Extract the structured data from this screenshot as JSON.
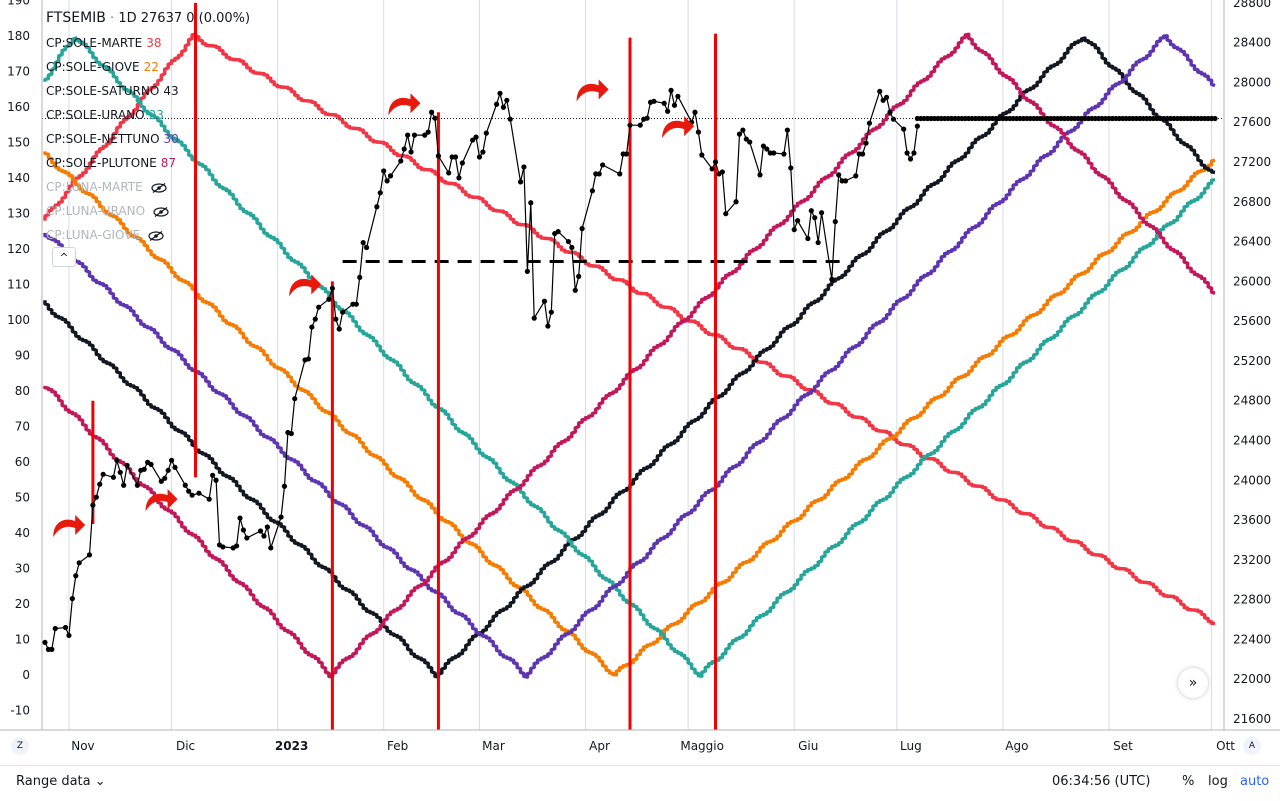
{
  "header": {
    "symbol": "FTSEMIB",
    "interval": "1D",
    "price": "27637",
    "change": "0 (0.00%)"
  },
  "indicators": [
    {
      "label": "CP:SOLE-MARTE",
      "value": "38",
      "color": "#f23645",
      "hidden": false
    },
    {
      "label": "CP:SOLE-GIOVE",
      "value": "22",
      "color": "#f57c00",
      "hidden": false
    },
    {
      "label": "CP:SOLE-SATURNO",
      "value": "43",
      "color": "#131722",
      "hidden": false
    },
    {
      "label": "CP:SOLE-URANO",
      "value": "23",
      "color": "#26a69a",
      "hidden": false
    },
    {
      "label": "CP:SOLE-NETTUNO",
      "value": "30",
      "color": "#5e35b1",
      "hidden": false
    },
    {
      "label": "CP:SOLE-PLUTONE",
      "value": "87",
      "color": "#c2185b",
      "hidden": false
    },
    {
      "label": "CP:LUNA-MARTE",
      "value": "",
      "color": "#b2b5be",
      "hidden": true
    },
    {
      "label": "CP:LUNA-URANO",
      "value": "",
      "color": "#b2b5be",
      "hidden": true
    },
    {
      "label": "CP:LUNA-GIOVE",
      "value": "",
      "color": "#b2b5be",
      "hidden": true
    }
  ],
  "icons": {
    "collapse": "chevron-up-icon",
    "scroll": "double-chevron-right-icon",
    "eye_off": "eye-crossed-icon"
  },
  "footer": {
    "range_label": "Range data",
    "range_caret": "⌄",
    "clock": "06:34:56 (UTC)",
    "percent": "%",
    "log": "log",
    "auto": "auto",
    "left_axis_button": "Z",
    "right_axis_button": "A",
    "scroll_glyph": "»",
    "collapse_glyph": "^"
  },
  "chart_data": {
    "type": "line",
    "left_axis": {
      "min": -15,
      "max": 190,
      "ticks": [
        -10,
        0,
        10,
        20,
        30,
        40,
        50,
        60,
        70,
        80,
        90,
        100,
        110,
        120,
        130,
        140,
        150,
        160,
        170,
        180,
        190
      ]
    },
    "right_axis": {
      "min": 21400,
      "max": 28800,
      "ticks": [
        21600,
        22000,
        22400,
        22800,
        23200,
        23600,
        24000,
        24400,
        24800,
        25200,
        25600,
        26000,
        26400,
        26800,
        27200,
        27600,
        28000,
        28400,
        28800
      ]
    },
    "x_domain": [
      "2022-10-25",
      "2023-10-02"
    ],
    "month_ticks": [
      {
        "date": "2022-11-01",
        "label": "Nov",
        "bold": false
      },
      {
        "date": "2022-12-01",
        "label": "Dic",
        "bold": false
      },
      {
        "date": "2023-01-01",
        "label": "2023",
        "bold": true
      },
      {
        "date": "2023-02-01",
        "label": "Feb",
        "bold": false
      },
      {
        "date": "2023-03-01",
        "label": "Mar",
        "bold": false
      },
      {
        "date": "2023-04-01",
        "label": "Apr",
        "bold": false
      },
      {
        "date": "2023-05-01",
        "label": "Maggio",
        "bold": false
      },
      {
        "date": "2023-06-01",
        "label": "Giu",
        "bold": false
      },
      {
        "date": "2023-07-01",
        "label": "Lug",
        "bold": false
      },
      {
        "date": "2023-08-01",
        "label": "Ago",
        "bold": false
      },
      {
        "date": "2023-09-01",
        "label": "Set",
        "bold": false
      },
      {
        "date": "2023-10-01",
        "label": "Ott",
        "bold": false
      }
    ],
    "cycle_series": [
      {
        "color": "#f23645",
        "points": [
          [
            "2022-10-25",
            128
          ],
          [
            "2022-12-08",
            180
          ],
          [
            "2023-10-02",
            15
          ]
        ]
      },
      {
        "color": "#f57c00",
        "points": [
          [
            "2022-10-25",
            147
          ],
          [
            "2023-04-10",
            0
          ],
          [
            "2023-10-02",
            145
          ]
        ]
      },
      {
        "color": "#131722",
        "points": [
          [
            "2022-10-25",
            105
          ],
          [
            "2023-02-17",
            0
          ],
          [
            "2023-08-25",
            180
          ],
          [
            "2023-10-02",
            141
          ]
        ]
      },
      {
        "color": "#26a69a",
        "points": [
          [
            "2022-10-25",
            167
          ],
          [
            "2022-11-03",
            180
          ],
          [
            "2023-05-05",
            0
          ],
          [
            "2023-10-02",
            139
          ]
        ]
      },
      {
        "color": "#5e35b1",
        "points": [
          [
            "2022-10-25",
            125
          ],
          [
            "2023-03-15",
            0
          ],
          [
            "2023-09-18",
            180
          ],
          [
            "2023-10-02",
            166
          ]
        ]
      },
      {
        "color": "#c2185b",
        "points": [
          [
            "2022-10-25",
            82
          ],
          [
            "2023-01-17",
            0
          ],
          [
            "2023-07-22",
            180
          ],
          [
            "2023-10-02",
            108
          ]
        ]
      }
    ],
    "price_series": {
      "color": "#000000",
      "axis": "right",
      "points": [
        [
          "2022-10-25",
          22370
        ],
        [
          "2022-10-26",
          22300
        ],
        [
          "2022-10-27",
          22300
        ],
        [
          "2022-10-28",
          22510
        ],
        [
          "2022-10-31",
          22520
        ],
        [
          "2022-11-01",
          22440
        ],
        [
          "2022-11-02",
          22810
        ],
        [
          "2022-11-03",
          23040
        ],
        [
          "2022-11-04",
          23170
        ],
        [
          "2022-11-07",
          23250
        ],
        [
          "2022-11-08",
          23750
        ],
        [
          "2022-11-09",
          23830
        ],
        [
          "2022-11-10",
          23960
        ],
        [
          "2022-11-11",
          24060
        ],
        [
          "2022-11-14",
          24030
        ],
        [
          "2022-11-15",
          24200
        ],
        [
          "2022-11-16",
          24080
        ],
        [
          "2022-11-17",
          23950
        ],
        [
          "2022-11-18",
          24150
        ],
        [
          "2022-11-21",
          23950
        ],
        [
          "2022-11-22",
          24100
        ],
        [
          "2022-11-23",
          24110
        ],
        [
          "2022-11-24",
          24180
        ],
        [
          "2022-11-25",
          24160
        ],
        [
          "2022-11-28",
          23990
        ],
        [
          "2022-11-29",
          24020
        ],
        [
          "2022-11-30",
          24100
        ],
        [
          "2022-12-01",
          24200
        ],
        [
          "2022-12-02",
          24130
        ],
        [
          "2022-12-05",
          23950
        ],
        [
          "2022-12-06",
          23890
        ],
        [
          "2022-12-07",
          23850
        ],
        [
          "2022-12-09",
          23870
        ],
        [
          "2022-12-12",
          23810
        ],
        [
          "2022-12-13",
          24050
        ],
        [
          "2022-12-14",
          24000
        ],
        [
          "2022-12-15",
          23350
        ],
        [
          "2022-12-16",
          23330
        ],
        [
          "2022-12-19",
          23320
        ],
        [
          "2022-12-20",
          23340
        ],
        [
          "2022-12-21",
          23620
        ],
        [
          "2022-12-22",
          23500
        ],
        [
          "2022-12-23",
          23420
        ],
        [
          "2022-12-27",
          23490
        ],
        [
          "2022-12-28",
          23440
        ],
        [
          "2022-12-29",
          23530
        ],
        [
          "2022-12-30",
          23320
        ],
        [
          "2023-01-02",
          23630
        ],
        [
          "2023-01-03",
          23940
        ],
        [
          "2023-01-04",
          24480
        ],
        [
          "2023-01-05",
          24470
        ],
        [
          "2023-01-06",
          24820
        ],
        [
          "2023-01-09",
          25210
        ],
        [
          "2023-01-10",
          25220
        ],
        [
          "2023-01-11",
          25540
        ],
        [
          "2023-01-12",
          25620
        ],
        [
          "2023-01-13",
          25740
        ],
        [
          "2023-01-16",
          25820
        ],
        [
          "2023-01-17",
          25930
        ],
        [
          "2023-01-18",
          25620
        ],
        [
          "2023-01-19",
          25520
        ],
        [
          "2023-01-20",
          25690
        ],
        [
          "2023-01-23",
          25770
        ],
        [
          "2023-01-24",
          25770
        ],
        [
          "2023-01-25",
          26040
        ],
        [
          "2023-01-26",
          26390
        ],
        [
          "2023-01-27",
          26340
        ],
        [
          "2023-01-30",
          26750
        ],
        [
          "2023-01-31",
          26890
        ],
        [
          "2023-02-01",
          27110
        ],
        [
          "2023-02-02",
          27010
        ],
        [
          "2023-02-03",
          27060
        ],
        [
          "2023-02-06",
          27210
        ],
        [
          "2023-02-07",
          27330
        ],
        [
          "2023-02-08",
          27470
        ],
        [
          "2023-02-09",
          27300
        ],
        [
          "2023-02-10",
          27470
        ],
        [
          "2023-02-13",
          27470
        ],
        [
          "2023-02-14",
          27500
        ],
        [
          "2023-02-15",
          27700
        ],
        [
          "2023-02-16",
          27640
        ],
        [
          "2023-02-17",
          27260
        ],
        [
          "2023-02-20",
          27090
        ],
        [
          "2023-02-21",
          27250
        ],
        [
          "2023-02-22",
          27250
        ],
        [
          "2023-02-23",
          27040
        ],
        [
          "2023-02-24",
          27190
        ],
        [
          "2023-02-27",
          27420
        ],
        [
          "2023-02-28",
          27450
        ],
        [
          "2023-03-01",
          27250
        ],
        [
          "2023-03-02",
          27300
        ],
        [
          "2023-03-03",
          27490
        ],
        [
          "2023-03-06",
          27780
        ],
        [
          "2023-03-07",
          27890
        ],
        [
          "2023-03-08",
          27750
        ],
        [
          "2023-03-09",
          27820
        ],
        [
          "2023-03-10",
          27630
        ],
        [
          "2023-03-13",
          27000
        ],
        [
          "2023-03-14",
          27150
        ],
        [
          "2023-03-15",
          26100
        ],
        [
          "2023-03-16",
          26790
        ],
        [
          "2023-03-17",
          25630
        ],
        [
          "2023-03-20",
          25800
        ],
        [
          "2023-03-21",
          25550
        ],
        [
          "2023-03-22",
          25690
        ],
        [
          "2023-03-23",
          26480
        ],
        [
          "2023-03-24",
          26500
        ],
        [
          "2023-03-27",
          26400
        ],
        [
          "2023-03-28",
          26340
        ],
        [
          "2023-03-29",
          25910
        ],
        [
          "2023-03-30",
          26050
        ],
        [
          "2023-03-31",
          26530
        ],
        [
          "2023-04-03",
          26910
        ],
        [
          "2023-04-04",
          27080
        ],
        [
          "2023-04-05",
          27080
        ],
        [
          "2023-04-06",
          27170
        ],
        [
          "2023-04-11",
          27080
        ],
        [
          "2023-04-12",
          27280
        ],
        [
          "2023-04-13",
          27280
        ],
        [
          "2023-04-14",
          27570
        ],
        [
          "2023-04-17",
          27570
        ],
        [
          "2023-04-18",
          27630
        ],
        [
          "2023-04-19",
          27640
        ],
        [
          "2023-04-20",
          27800
        ],
        [
          "2023-04-21",
          27810
        ],
        [
          "2023-04-24",
          27790
        ],
        [
          "2023-04-25",
          27710
        ],
        [
          "2023-04-26",
          27920
        ],
        [
          "2023-04-27",
          27770
        ],
        [
          "2023-04-28",
          27860
        ],
        [
          "2023-05-02",
          27600
        ],
        [
          "2023-05-03",
          27700
        ],
        [
          "2023-05-04",
          27500
        ],
        [
          "2023-05-05",
          27270
        ],
        [
          "2023-05-08",
          27130
        ],
        [
          "2023-05-09",
          27200
        ],
        [
          "2023-05-10",
          27080
        ],
        [
          "2023-05-11",
          27100
        ],
        [
          "2023-05-12",
          26680
        ],
        [
          "2023-05-15",
          26800
        ],
        [
          "2023-05-16",
          27480
        ],
        [
          "2023-05-17",
          27520
        ],
        [
          "2023-05-18",
          27430
        ],
        [
          "2023-05-19",
          27400
        ],
        [
          "2023-05-22",
          27070
        ],
        [
          "2023-05-23",
          27360
        ],
        [
          "2023-05-24",
          27330
        ],
        [
          "2023-05-25",
          27290
        ],
        [
          "2023-05-26",
          27290
        ],
        [
          "2023-05-29",
          27280
        ],
        [
          "2023-05-30",
          27520
        ],
        [
          "2023-05-31",
          27140
        ],
        [
          "2023-06-01",
          26520
        ],
        [
          "2023-06-02",
          26610
        ],
        [
          "2023-06-05",
          26430
        ],
        [
          "2023-06-06",
          26710
        ],
        [
          "2023-06-07",
          26640
        ],
        [
          "2023-06-08",
          26390
        ],
        [
          "2023-06-09",
          26690
        ],
        [
          "2023-06-12",
          26020
        ],
        [
          "2023-06-13",
          26600
        ],
        [
          "2023-06-14",
          27070
        ],
        [
          "2023-06-15",
          27010
        ],
        [
          "2023-06-16",
          27010
        ],
        [
          "2023-06-19",
          27060
        ],
        [
          "2023-06-20",
          27280
        ],
        [
          "2023-06-21",
          27280
        ],
        [
          "2023-06-22",
          27390
        ],
        [
          "2023-06-23",
          27590
        ],
        [
          "2023-06-26",
          27910
        ],
        [
          "2023-06-27",
          27820
        ],
        [
          "2023-06-28",
          27850
        ],
        [
          "2023-06-29",
          27700
        ],
        [
          "2023-06-30",
          27630
        ],
        [
          "2023-07-03",
          27530
        ],
        [
          "2023-07-04",
          27290
        ],
        [
          "2023-07-05",
          27230
        ],
        [
          "2023-07-06",
          27290
        ],
        [
          "2023-07-07",
          27560
        ]
      ]
    },
    "projection": {
      "value": 27637,
      "from": "2023-07-07",
      "to": "2023-10-02",
      "color": "#000000"
    },
    "price_reference_line": {
      "value": 27637
    },
    "support_level": {
      "value": 26200,
      "from": "2023-01-20",
      "to": "2023-06-15"
    },
    "vertical_red_lines": [
      {
        "date": "2022-11-08",
        "from": 23560,
        "to": 24800
      },
      {
        "date": "2022-12-08",
        "from": 24030,
        "to": 28800
      },
      {
        "date": "2023-01-17",
        "from": 21400,
        "to": 26000
      },
      {
        "date": "2023-02-17",
        "from": 21400,
        "to": 27700
      },
      {
        "date": "2023-04-14",
        "from": 21400,
        "to": 28450
      },
      {
        "date": "2023-05-09",
        "from": 21400,
        "to": 28490
      }
    ],
    "arrows": [
      {
        "date": "2022-11-04",
        "value": 23570
      },
      {
        "date": "2022-12-01",
        "value": 23830
      },
      {
        "date": "2023-01-12",
        "value": 25990
      },
      {
        "date": "2023-02-10",
        "value": 27810
      },
      {
        "date": "2023-04-06",
        "value": 27950
      },
      {
        "date": "2023-05-01",
        "value": 27580
      }
    ]
  }
}
